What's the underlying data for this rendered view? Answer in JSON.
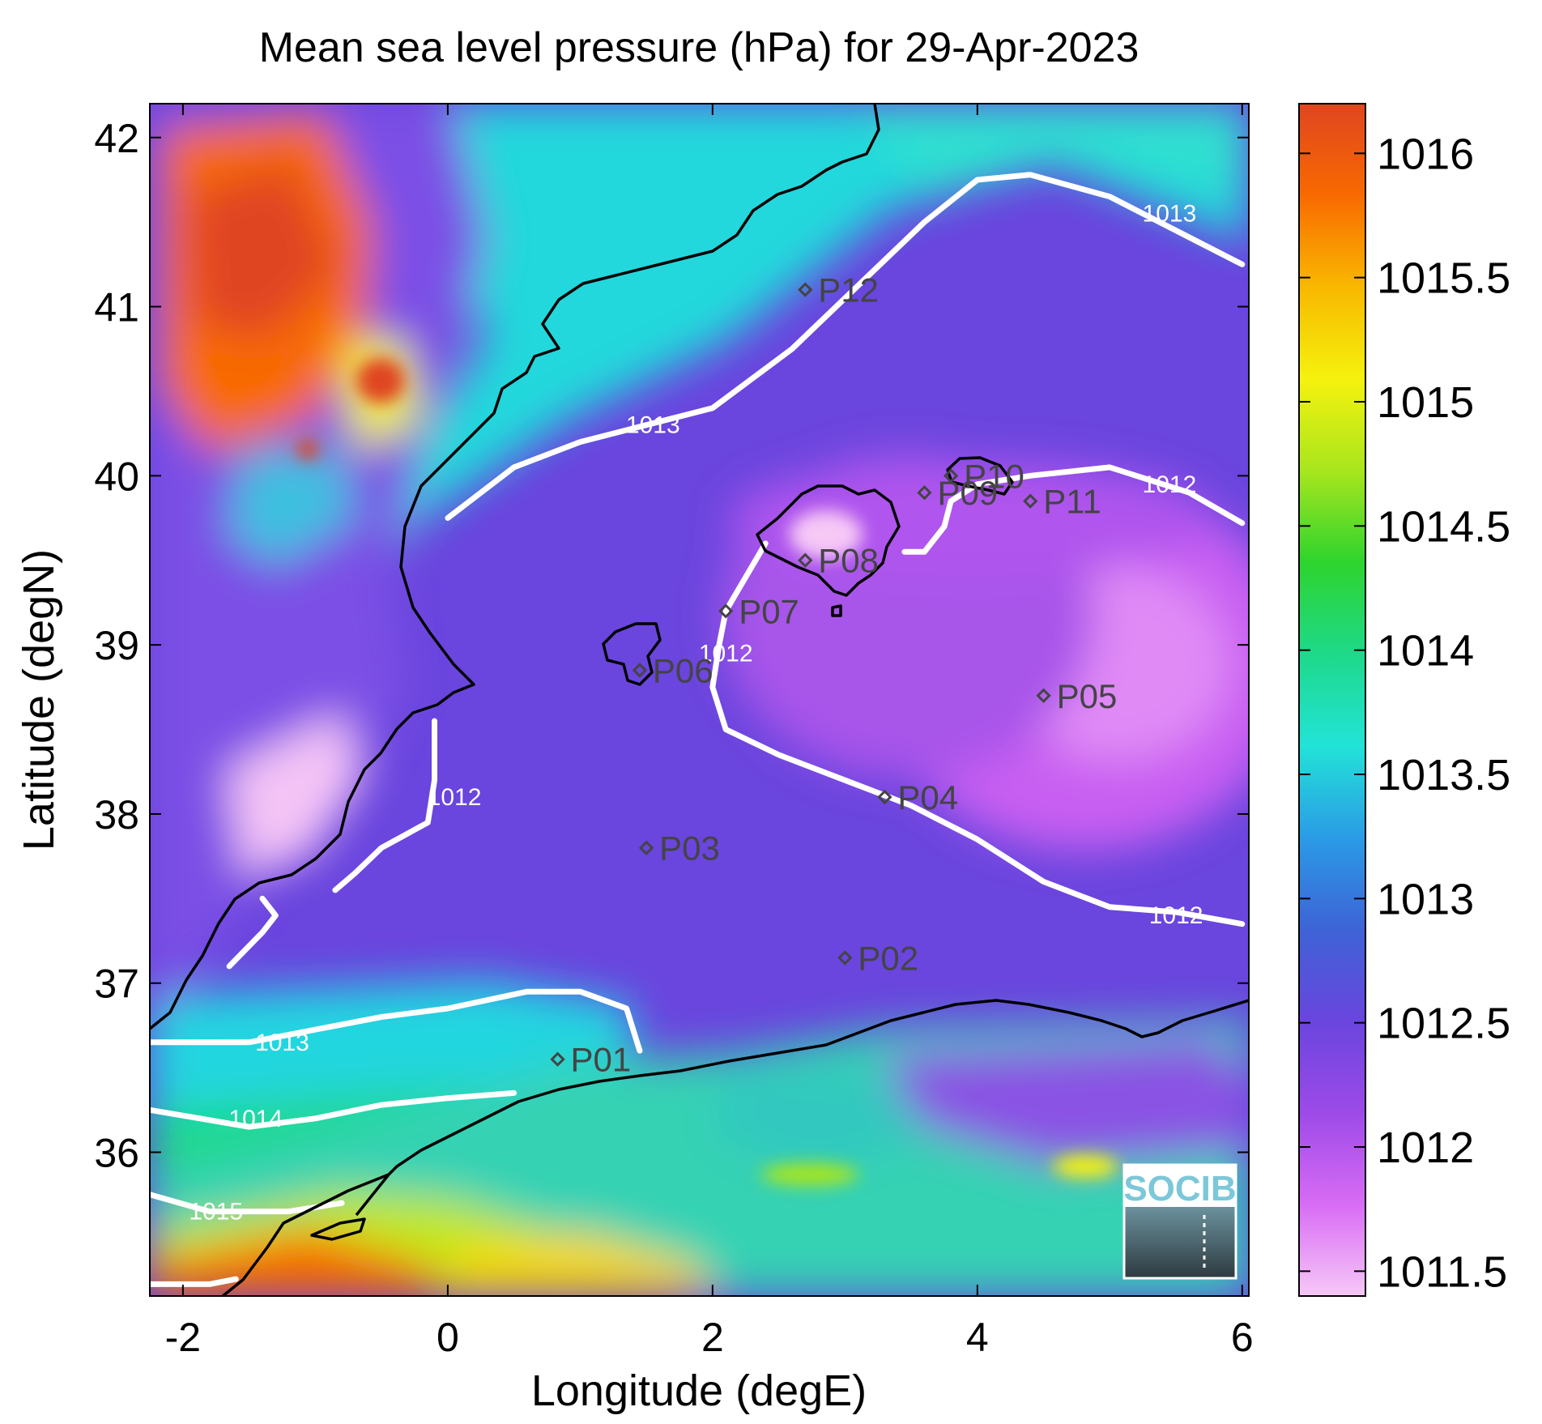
{
  "title": "Mean sea level pressure (hPa) for 29-Apr-2023",
  "xlabel": "Longitude (degE)",
  "ylabel": "Latitude (degN)",
  "xlim": [
    -2.25,
    6.05
  ],
  "ylim": [
    35.15,
    42.2
  ],
  "xticks": [
    {
      "value": -2,
      "label": "-2"
    },
    {
      "value": 0,
      "label": "0"
    },
    {
      "value": 2,
      "label": "2"
    },
    {
      "value": 4,
      "label": "4"
    },
    {
      "value": 6,
      "label": "6"
    }
  ],
  "yticks": [
    {
      "value": 36,
      "label": "36"
    },
    {
      "value": 37,
      "label": "37"
    },
    {
      "value": 38,
      "label": "38"
    },
    {
      "value": 39,
      "label": "39"
    },
    {
      "value": 40,
      "label": "40"
    },
    {
      "value": 41,
      "label": "41"
    },
    {
      "value": 42,
      "label": "42"
    }
  ],
  "colorbar": {
    "min": 1011.4,
    "max": 1016.2,
    "ticks": [
      {
        "value": 1011.5,
        "label": "1011.5"
      },
      {
        "value": 1012,
        "label": "1012"
      },
      {
        "value": 1012.5,
        "label": "1012.5"
      },
      {
        "value": 1013,
        "label": "1013"
      },
      {
        "value": 1013.5,
        "label": "1013.5"
      },
      {
        "value": 1014,
        "label": "1014"
      },
      {
        "value": 1014.5,
        "label": "1014.5"
      },
      {
        "value": 1015,
        "label": "1015"
      },
      {
        "value": 1015.5,
        "label": "1015.5"
      },
      {
        "value": 1016,
        "label": "1016"
      }
    ],
    "colors": [
      "#f6c8f6",
      "#d86cf4",
      "#9d4ae8",
      "#6a45de",
      "#3e63d6",
      "#2b9be6",
      "#22e3d8",
      "#1ed98a",
      "#2ed42e",
      "#a8e61e",
      "#f5f20e",
      "#f8b800",
      "#f86a00",
      "#e04520"
    ]
  },
  "contours": [
    {
      "label": "1013",
      "points": [
        [
          0,
          39.75
        ],
        [
          0.5,
          40.05
        ],
        [
          1,
          40.2
        ],
        [
          1.5,
          40.3
        ],
        [
          2,
          40.4
        ],
        [
          2.6,
          40.75
        ],
        [
          3.2,
          41.2
        ],
        [
          3.6,
          41.5
        ],
        [
          4,
          41.75
        ],
        [
          4.4,
          41.78
        ],
        [
          5,
          41.65
        ],
        [
          5.5,
          41.45
        ],
        [
          6,
          41.25
        ]
      ],
      "labels": [
        {
          "lon": 1.55,
          "lat": 40.3,
          "text": "1013"
        },
        {
          "lon": 5.45,
          "lat": 41.55,
          "text": "1013"
        }
      ]
    },
    {
      "label": "1013",
      "points": [
        [
          -2.25,
          36.65
        ],
        [
          -1.5,
          36.65
        ],
        [
          -0.5,
          36.8
        ],
        [
          0,
          36.85
        ],
        [
          0.6,
          36.95
        ],
        [
          1,
          36.95
        ],
        [
          1.35,
          36.85
        ],
        [
          1.45,
          36.6
        ]
      ],
      "labels": [
        {
          "lon": -1.25,
          "lat": 36.65,
          "text": "1013"
        }
      ]
    },
    {
      "label": "1012",
      "points": [
        [
          -0.1,
          38.55
        ],
        [
          -0.1,
          38.2
        ],
        [
          -0.15,
          37.95
        ],
        [
          -0.5,
          37.8
        ],
        [
          -0.7,
          37.65
        ],
        [
          -0.85,
          37.55
        ]
      ],
      "labels": [
        {
          "lon": 0.05,
          "lat": 38.1,
          "text": "1012"
        }
      ]
    },
    {
      "label": "1012",
      "points": [
        [
          -1.65,
          37.1
        ],
        [
          -1.4,
          37.3
        ],
        [
          -1.3,
          37.4
        ],
        [
          -1.4,
          37.5
        ]
      ],
      "labels": []
    },
    {
      "label": "1012",
      "points": [
        [
          2.4,
          39.6
        ],
        [
          2.25,
          39.4
        ],
        [
          2.1,
          39.2
        ],
        [
          2.05,
          39
        ],
        [
          2,
          38.75
        ],
        [
          2.1,
          38.5
        ],
        [
          2.5,
          38.35
        ],
        [
          3,
          38.2
        ],
        [
          3.5,
          38.05
        ],
        [
          4,
          37.85
        ],
        [
          4.5,
          37.6
        ],
        [
          5,
          37.45
        ],
        [
          5.5,
          37.42
        ],
        [
          6,
          37.35
        ]
      ],
      "labels": [
        {
          "lon": 2.1,
          "lat": 38.95,
          "text": "1012"
        },
        {
          "lon": 5.5,
          "lat": 37.4,
          "text": "1012"
        }
      ]
    },
    {
      "label": "1012",
      "points": [
        [
          3.45,
          39.55
        ],
        [
          3.6,
          39.55
        ],
        [
          3.75,
          39.7
        ],
        [
          3.8,
          39.85
        ],
        [
          4.0,
          39.95
        ],
        [
          4.4,
          40.0
        ],
        [
          5,
          40.05
        ],
        [
          5.6,
          39.9
        ],
        [
          6,
          39.72
        ]
      ],
      "labels": [
        {
          "lon": 5.45,
          "lat": 39.95,
          "text": "1012"
        }
      ]
    },
    {
      "label": "1014",
      "points": [
        [
          -2.25,
          36.25
        ],
        [
          -1.5,
          36.15
        ],
        [
          -1,
          36.2
        ],
        [
          -0.5,
          36.28
        ],
        [
          0,
          36.32
        ],
        [
          0.5,
          36.35
        ]
      ],
      "labels": [
        {
          "lon": -1.45,
          "lat": 36.2,
          "text": "1014"
        }
      ]
    },
    {
      "label": "1015",
      "points": [
        [
          -2.25,
          35.75
        ],
        [
          -1.8,
          35.65
        ],
        [
          -1.2,
          35.65
        ],
        [
          -0.8,
          35.7
        ]
      ],
      "labels": [
        {
          "lon": -1.75,
          "lat": 35.65,
          "text": "1015"
        }
      ]
    },
    {
      "label": "",
      "points": [
        [
          -2.25,
          35.22
        ],
        [
          -1.8,
          35.22
        ],
        [
          -1.6,
          35.25
        ]
      ],
      "labels": []
    }
  ],
  "stations": [
    {
      "name": "P01",
      "lon": 0.83,
      "lat": 36.55
    },
    {
      "name": "P02",
      "lon": 3.0,
      "lat": 37.15
    },
    {
      "name": "P03",
      "lon": 1.5,
      "lat": 37.8
    },
    {
      "name": "P04",
      "lon": 3.3,
      "lat": 38.1
    },
    {
      "name": "P05",
      "lon": 4.5,
      "lat": 38.7
    },
    {
      "name": "P06",
      "lon": 1.45,
      "lat": 38.85
    },
    {
      "name": "P07",
      "lon": 2.1,
      "lat": 39.2
    },
    {
      "name": "P08",
      "lon": 2.7,
      "lat": 39.5
    },
    {
      "name": "P09",
      "lon": 3.6,
      "lat": 39.9
    },
    {
      "name": "P10",
      "lon": 3.8,
      "lat": 40.0
    },
    {
      "name": "P11",
      "lon": 4.4,
      "lat": 39.85
    },
    {
      "name": "P12",
      "lon": 2.7,
      "lat": 41.1
    }
  ],
  "logo": {
    "text": "SOCIB"
  }
}
